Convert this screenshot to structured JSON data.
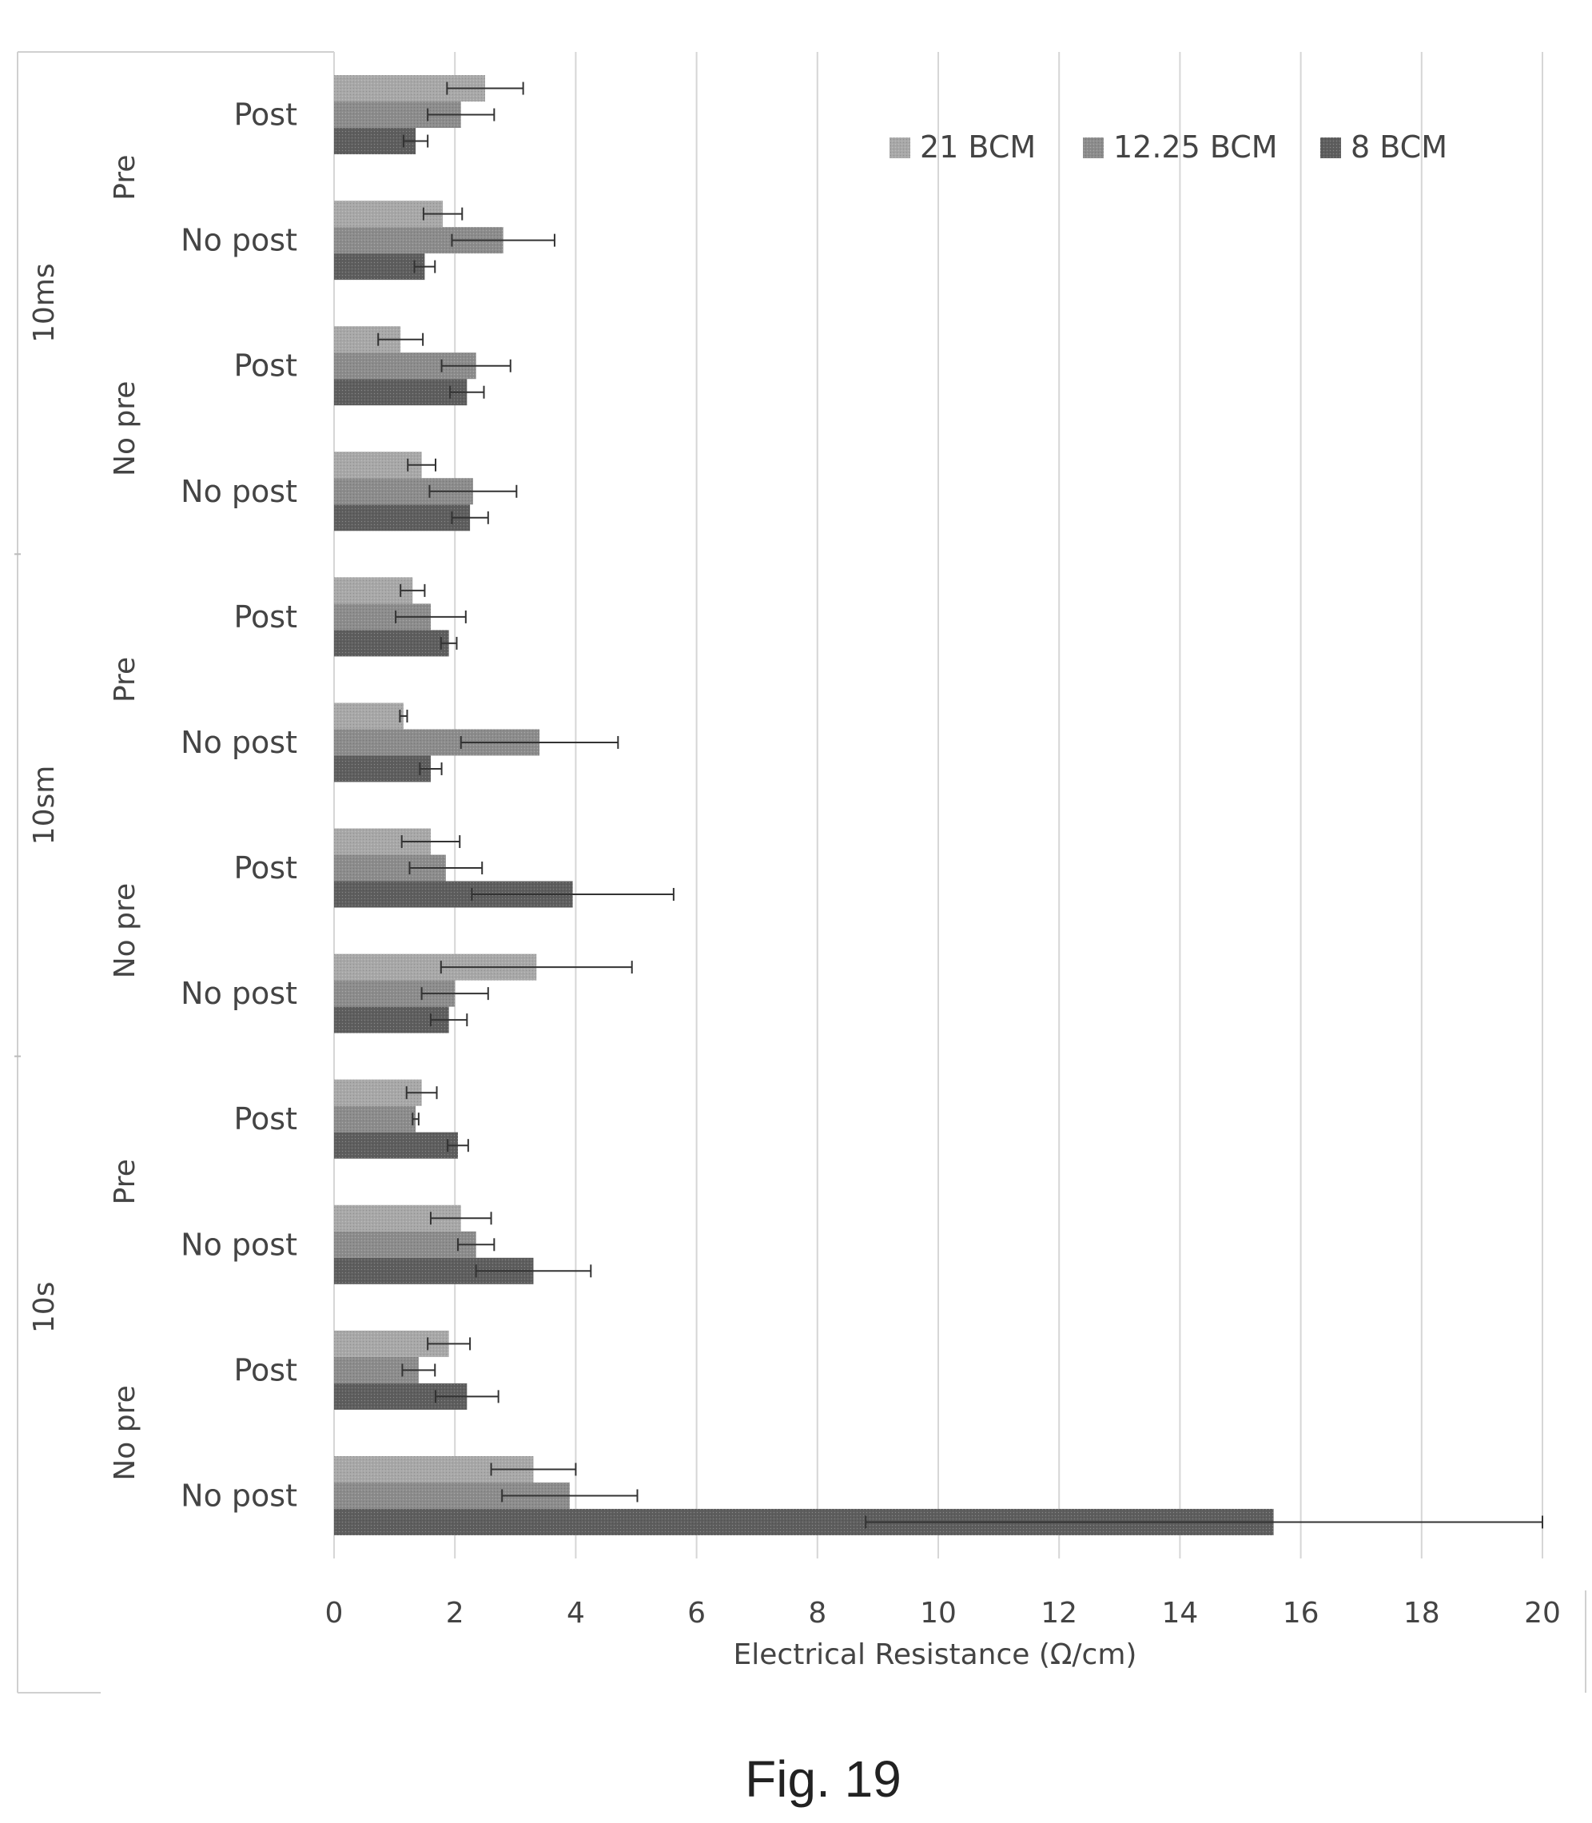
{
  "chart_data": {
    "type": "bar",
    "orientation": "horizontal",
    "xlabel": "Electrical  Resistance (Ω/cm)",
    "xlim": [
      0,
      20
    ],
    "xticks": [
      0,
      2,
      4,
      6,
      8,
      10,
      12,
      14,
      16,
      18,
      20
    ],
    "grid": "vertical",
    "legend_position": "top-right",
    "series": [
      {
        "name": "21 BCM",
        "color": "#a8a8a8"
      },
      {
        "name": "12.25 BCM",
        "color": "#8c8c8c"
      },
      {
        "name": "8 BCM",
        "color": "#5e5e5e"
      }
    ],
    "groups": [
      {
        "label": "10ms",
        "subgroups": [
          {
            "label": "Pre",
            "rows": [
              {
                "label": "Post",
                "values": [
                  2.5,
                  2.1,
                  1.35
                ],
                "errors": [
                  0.63,
                  0.55,
                  0.2
                ]
              },
              {
                "label": "No post",
                "values": [
                  1.8,
                  2.8,
                  1.5
                ],
                "errors": [
                  0.32,
                  0.85,
                  0.17
                ]
              }
            ]
          },
          {
            "label": "No pre",
            "rows": [
              {
                "label": "Post",
                "values": [
                  1.1,
                  2.35,
                  2.2
                ],
                "errors": [
                  0.37,
                  0.57,
                  0.28
                ]
              },
              {
                "label": "No post",
                "values": [
                  1.45,
                  2.3,
                  2.25
                ],
                "errors": [
                  0.23,
                  0.72,
                  0.3
                ]
              }
            ]
          }
        ]
      },
      {
        "label": "10sm",
        "subgroups": [
          {
            "label": "Pre",
            "rows": [
              {
                "label": "Post",
                "values": [
                  1.3,
                  1.6,
                  1.9
                ],
                "errors": [
                  0.2,
                  0.58,
                  0.13
                ]
              },
              {
                "label": "No post",
                "values": [
                  1.15,
                  3.4,
                  1.6
                ],
                "errors": [
                  0.06,
                  1.3,
                  0.18
                ]
              }
            ]
          },
          {
            "label": "No pre",
            "rows": [
              {
                "label": "Post",
                "values": [
                  1.6,
                  1.85,
                  3.95
                ],
                "errors": [
                  0.48,
                  0.6,
                  1.67
                ]
              },
              {
                "label": "No post",
                "values": [
                  3.35,
                  2.0,
                  1.9
                ],
                "errors": [
                  1.58,
                  0.55,
                  0.3
                ]
              }
            ]
          }
        ]
      },
      {
        "label": "10s",
        "subgroups": [
          {
            "label": "Pre",
            "rows": [
              {
                "label": "Post",
                "values": [
                  1.45,
                  1.35,
                  2.05
                ],
                "errors": [
                  0.25,
                  0.05,
                  0.17
                ]
              },
              {
                "label": "No post",
                "values": [
                  2.1,
                  2.35,
                  3.3
                ],
                "errors": [
                  0.5,
                  0.3,
                  0.95
                ]
              }
            ]
          },
          {
            "label": "No pre",
            "rows": [
              {
                "label": "Post",
                "values": [
                  1.9,
                  1.4,
                  2.2
                ],
                "errors": [
                  0.35,
                  0.27,
                  0.52
                ]
              },
              {
                "label": "No post",
                "values": [
                  3.3,
                  3.9,
                  15.55
                ],
                "errors": [
                  0.7,
                  1.12,
                  6.75
                ]
              }
            ]
          }
        ]
      }
    ]
  },
  "caption": "Fig. 19"
}
